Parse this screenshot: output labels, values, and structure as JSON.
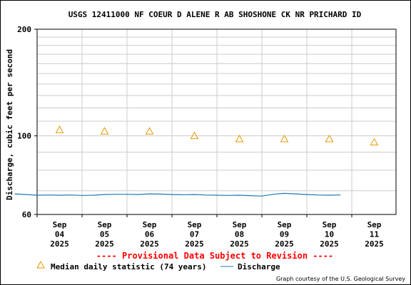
{
  "chart_data": {
    "type": "line",
    "title": "USGS 12411000 NF COEUR D ALENE R AB SHOSHONE CK NR PRICHARD ID",
    "ylabel": "Discharge, cubic feet per second",
    "xlabel": "",
    "y_scale": "log",
    "ylim": [
      60,
      200
    ],
    "y_ticks": [
      {
        "value": 60,
        "label": "60"
      },
      {
        "value": 100,
        "label": "100"
      },
      {
        "value": 200,
        "label": "200"
      }
    ],
    "x_ticks": [
      {
        "line1": "Sep",
        "line2": "04",
        "line3": "2025"
      },
      {
        "line1": "Sep",
        "line2": "05",
        "line3": "2025"
      },
      {
        "line1": "Sep",
        "line2": "06",
        "line3": "2025"
      },
      {
        "line1": "Sep",
        "line2": "07",
        "line3": "2025"
      },
      {
        "line1": "Sep",
        "line2": "08",
        "line3": "2025"
      },
      {
        "line1": "Sep",
        "line2": "09",
        "line3": "2025"
      },
      {
        "line1": "Sep",
        "line2": "10",
        "line3": "2025"
      },
      {
        "line1": "Sep",
        "line2": "11",
        "line3": "2025"
      }
    ],
    "grid": true,
    "series": [
      {
        "name": "Median daily statistic (74 years)",
        "kind": "markers",
        "color": "#e69900",
        "points": [
          {
            "x": "Sep 04 2025",
            "y": 104
          },
          {
            "x": "Sep 05 2025",
            "y": 103
          },
          {
            "x": "Sep 06 2025",
            "y": 103
          },
          {
            "x": "Sep 07 2025",
            "y": 100
          },
          {
            "x": "Sep 08 2025",
            "y": 98
          },
          {
            "x": "Sep 09 2025",
            "y": 98
          },
          {
            "x": "Sep 10 2025",
            "y": 98
          },
          {
            "x": "Sep 11 2025",
            "y": 96
          }
        ]
      },
      {
        "name": "Discharge",
        "kind": "line",
        "color": "#1f77b4",
        "points": [
          {
            "x": "Sep 03 2025 12:00",
            "y": 68.6
          },
          {
            "x": "Sep 03 2025 18:00",
            "y": 68.3
          },
          {
            "x": "Sep 04 2025 00:00",
            "y": 68.0
          },
          {
            "x": "Sep 04 2025 06:00",
            "y": 68.1
          },
          {
            "x": "Sep 04 2025 12:00",
            "y": 68.0
          },
          {
            "x": "Sep 04 2025 18:00",
            "y": 68.1
          },
          {
            "x": "Sep 05 2025 00:00",
            "y": 67.9
          },
          {
            "x": "Sep 05 2025 06:00",
            "y": 68.0
          },
          {
            "x": "Sep 05 2025 12:00",
            "y": 68.3
          },
          {
            "x": "Sep 05 2025 18:00",
            "y": 68.4
          },
          {
            "x": "Sep 06 2025 00:00",
            "y": 68.4
          },
          {
            "x": "Sep 06 2025 06:00",
            "y": 68.3
          },
          {
            "x": "Sep 06 2025 12:00",
            "y": 68.6
          },
          {
            "x": "Sep 06 2025 18:00",
            "y": 68.5
          },
          {
            "x": "Sep 07 2025 00:00",
            "y": 68.3
          },
          {
            "x": "Sep 07 2025 06:00",
            "y": 68.2
          },
          {
            "x": "Sep 07 2025 12:00",
            "y": 68.3
          },
          {
            "x": "Sep 07 2025 18:00",
            "y": 68.1
          },
          {
            "x": "Sep 08 2025 00:00",
            "y": 68.0
          },
          {
            "x": "Sep 08 2025 06:00",
            "y": 67.9
          },
          {
            "x": "Sep 08 2025 12:00",
            "y": 68.0
          },
          {
            "x": "Sep 08 2025 18:00",
            "y": 67.8
          },
          {
            "x": "Sep 09 2025 00:00",
            "y": 67.6
          },
          {
            "x": "Sep 09 2025 06:00",
            "y": 68.4
          },
          {
            "x": "Sep 09 2025 12:00",
            "y": 68.8
          },
          {
            "x": "Sep 09 2025 18:00",
            "y": 68.6
          },
          {
            "x": "Sep 10 2025 00:00",
            "y": 68.3
          },
          {
            "x": "Sep 10 2025 06:00",
            "y": 68.1
          },
          {
            "x": "Sep 10 2025 12:00",
            "y": 68.0
          },
          {
            "x": "Sep 10 2025 18:00",
            "y": 68.1
          }
        ]
      }
    ]
  },
  "provisional_text": "---- Provisional Data Subject to Revision ----",
  "credit_text": "Graph courtesy of the U.S. Geological Survey",
  "colors": {
    "median_marker": "#e69900",
    "discharge_line": "#1f77b4",
    "provisional": "#ff0000",
    "grid": "#cccccc"
  }
}
